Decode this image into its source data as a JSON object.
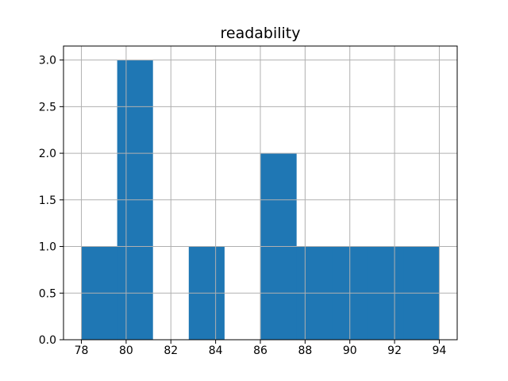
{
  "chart_data": {
    "type": "histogram",
    "title": "readability",
    "xlabel": "",
    "ylabel": "",
    "bin_edges": [
      78.0,
      79.6,
      81.2,
      82.8,
      84.4,
      86.0,
      87.6,
      89.2,
      90.8,
      92.4,
      94.0
    ],
    "counts": [
      1,
      3,
      0,
      1,
      0,
      2,
      1,
      1,
      1,
      1
    ],
    "xlim": [
      77.2,
      94.8
    ],
    "ylim": [
      0,
      3.15
    ],
    "xticks": {
      "values": [
        78,
        80,
        82,
        84,
        86,
        88,
        90,
        92,
        94
      ],
      "labels": [
        "78",
        "80",
        "82",
        "84",
        "86",
        "88",
        "90",
        "92",
        "94"
      ]
    },
    "yticks": {
      "values": [
        0.0,
        0.5,
        1.0,
        1.5,
        2.0,
        2.5,
        3.0
      ],
      "labels": [
        "0.0",
        "0.5",
        "1.0",
        "1.5",
        "2.0",
        "2.5",
        "3.0"
      ]
    },
    "grid": true,
    "grid_on_top_of_bars": true,
    "colors": {
      "bar": "#1f77b4",
      "grid": "#b0b0b0",
      "spine": "#000000",
      "text": "#000000",
      "background": "#ffffff"
    }
  }
}
